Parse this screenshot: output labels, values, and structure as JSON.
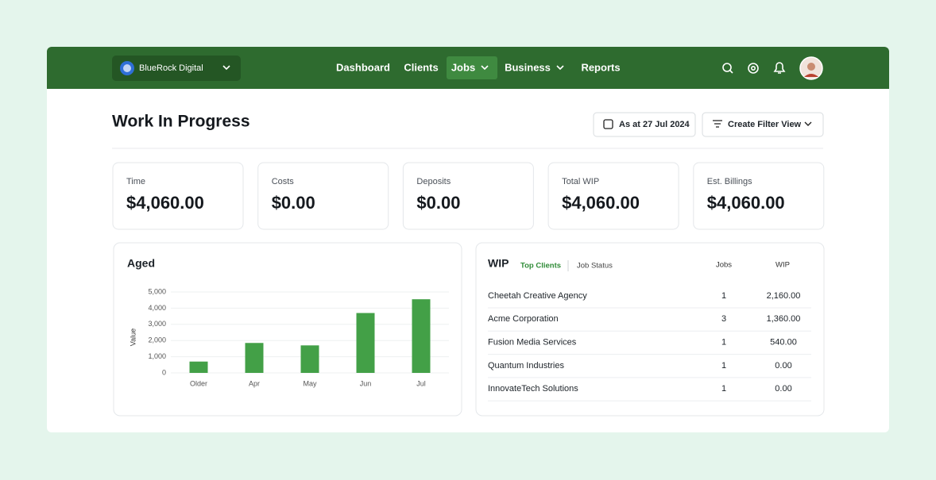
{
  "header": {
    "workspace": "BlueRock Digital",
    "nav": [
      "Dashboard",
      "Clients",
      "Jobs",
      "Business",
      "Reports"
    ]
  },
  "page": {
    "title": "Work In Progress",
    "date_button": "As at 27 Jul 2024",
    "filter_button": "Create Filter View"
  },
  "stats": [
    {
      "label": "Time",
      "value": "$4,060.00"
    },
    {
      "label": "Costs",
      "value": "$0.00"
    },
    {
      "label": "Deposits",
      "value": "$0.00"
    },
    {
      "label": "Total WIP",
      "value": "$4,060.00"
    },
    {
      "label": "Est. Billings",
      "value": "$4,060.00"
    }
  ],
  "chart_data": {
    "type": "bar",
    "title": "Aged",
    "y_label": "Value",
    "categories": [
      "Older",
      "Apr",
      "May",
      "Jun",
      "Jul"
    ],
    "values": [
      700,
      1850,
      1700,
      3700,
      4550
    ],
    "color": "#43a047",
    "ylim": [
      0,
      5000
    ],
    "yticks": [
      0,
      {
        "value": 1000,
        "label": "1,000"
      },
      {
        "value": 2000,
        "label": "2,000"
      },
      {
        "value": 3000,
        "label": "3,000"
      },
      {
        "value": 4000,
        "label": "4,000"
      },
      {
        "value": 5000,
        "label": "5,000"
      }
    ],
    "grid": true
  },
  "wip_table": {
    "title": "WIP",
    "tabs": [
      "Top Clients",
      "Job Status"
    ],
    "columns": [
      "Jobs",
      "WIP"
    ],
    "rows": [
      [
        "Cheetah Creative Agency",
        1,
        "2,160.00"
      ],
      [
        "Acme Corporation",
        3,
        "1,360.00"
      ],
      [
        "Fusion Media Services",
        1,
        "540.00"
      ],
      [
        "Quantum Industries",
        1,
        "0.00"
      ],
      [
        "InnovateTech Solutions",
        1,
        "0.00"
      ]
    ]
  }
}
